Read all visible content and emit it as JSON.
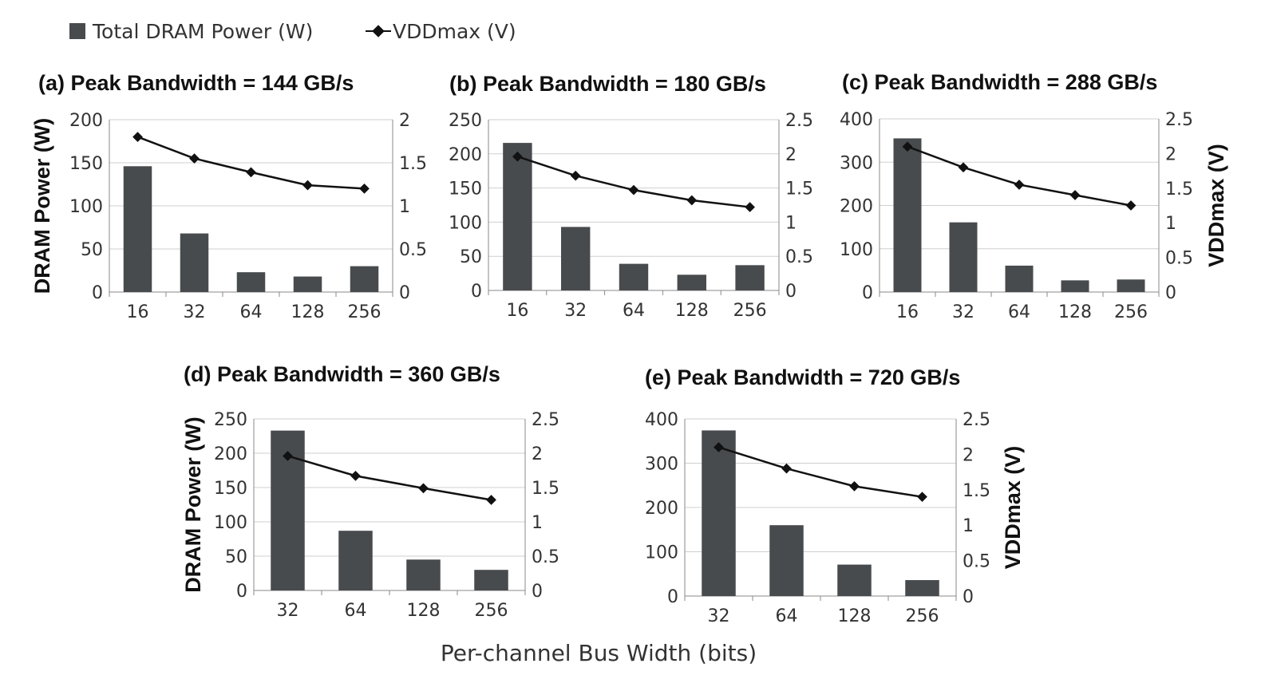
{
  "legend": {
    "bar_label": "Total DRAM Power (W)",
    "line_label": "VDDmax (V)"
  },
  "x_axis_label": "Per-channel Bus Width (bits)",
  "colors": {
    "bar": "#474b4e",
    "line": "#111111"
  },
  "chart_data": [
    {
      "type": "bar",
      "title": "(a) Peak Bandwidth = 144 GB/s",
      "categories": [
        "16",
        "32",
        "64",
        "128",
        "256"
      ],
      "series": [
        {
          "name": "Total DRAM Power (W)",
          "axis": "left",
          "values": [
            146,
            68,
            23,
            18,
            30
          ]
        },
        {
          "name": "VDDmax (V)",
          "axis": "right",
          "type": "line",
          "values": [
            1.8,
            1.55,
            1.39,
            1.24,
            1.2
          ]
        }
      ],
      "ylabel": "DRAM Power (W)",
      "y2label": "",
      "ylim": [
        0,
        200
      ],
      "yticks": [
        0,
        50,
        100,
        150,
        200
      ],
      "ytick_labels": [
        "0",
        "50",
        "100",
        "150",
        "200"
      ],
      "y2lim": [
        0,
        2
      ],
      "y2ticks": [
        0,
        0.5,
        1,
        1.5,
        2
      ],
      "y2tick_labels": [
        "0",
        "0.5",
        "1",
        "1.5",
        "2"
      ],
      "grid": true
    },
    {
      "type": "bar",
      "title": "(b) Peak Bandwidth = 180 GB/s",
      "categories": [
        "16",
        "32",
        "64",
        "128",
        "256"
      ],
      "series": [
        {
          "name": "Total DRAM Power (W)",
          "axis": "left",
          "values": [
            216,
            93,
            39,
            23,
            37
          ]
        },
        {
          "name": "VDDmax (V)",
          "axis": "right",
          "type": "line",
          "values": [
            1.96,
            1.68,
            1.47,
            1.32,
            1.22
          ]
        }
      ],
      "ylabel": "",
      "y2label": "",
      "ylim": [
        0,
        250
      ],
      "yticks": [
        0,
        50,
        100,
        150,
        200,
        250
      ],
      "ytick_labels": [
        "0",
        "50",
        "100",
        "150",
        "200",
        "250"
      ],
      "y2lim": [
        0,
        2.5
      ],
      "y2ticks": [
        0,
        0.5,
        1,
        1.5,
        2,
        2.5
      ],
      "y2tick_labels": [
        "0",
        "0.5",
        "1",
        "1.5",
        "2",
        "2.5"
      ],
      "grid": true
    },
    {
      "type": "bar",
      "title": "(c) Peak Bandwidth = 288 GB/s",
      "categories": [
        "16",
        "32",
        "64",
        "128",
        "256"
      ],
      "series": [
        {
          "name": "Total DRAM Power (W)",
          "axis": "left",
          "values": [
            355,
            161,
            61,
            27,
            29
          ]
        },
        {
          "name": "VDDmax (V)",
          "axis": "right",
          "type": "line",
          "values": [
            2.1,
            1.8,
            1.55,
            1.4,
            1.25
          ]
        }
      ],
      "ylabel": "",
      "y2label": "VDDmax (V)",
      "ylim": [
        0,
        400
      ],
      "yticks": [
        0,
        100,
        200,
        300,
        400
      ],
      "ytick_labels": [
        "0",
        "100",
        "200",
        "300",
        "400"
      ],
      "y2lim": [
        0,
        2.5
      ],
      "y2ticks": [
        0,
        0.5,
        1,
        1.5,
        2,
        2.5
      ],
      "y2tick_labels": [
        "0",
        "0.5",
        "1",
        "1.5",
        "2",
        "2.5"
      ],
      "grid": true
    },
    {
      "type": "bar",
      "title": "(d) Peak Bandwidth = 360 GB/s",
      "categories": [
        "32",
        "64",
        "128",
        "256"
      ],
      "series": [
        {
          "name": "Total DRAM Power (W)",
          "axis": "left",
          "values": [
            233,
            87,
            45,
            30
          ]
        },
        {
          "name": "VDDmax (V)",
          "axis": "right",
          "type": "line",
          "values": [
            1.96,
            1.67,
            1.49,
            1.32
          ]
        }
      ],
      "ylabel": "DRAM Power (W)",
      "y2label": "",
      "ylim": [
        0,
        250
      ],
      "yticks": [
        0,
        50,
        100,
        150,
        200,
        250
      ],
      "ytick_labels": [
        "0",
        "50",
        "100",
        "150",
        "200",
        "250"
      ],
      "y2lim": [
        0,
        2.5
      ],
      "y2ticks": [
        0,
        0.5,
        1,
        1.5,
        2,
        2.5
      ],
      "y2tick_labels": [
        "0",
        "0.5",
        "1",
        "1.5",
        "2",
        "2.5"
      ],
      "grid": true
    },
    {
      "type": "bar",
      "title": "(e) Peak Bandwidth = 720 GB/s",
      "categories": [
        "32",
        "64",
        "128",
        "256"
      ],
      "series": [
        {
          "name": "Total DRAM Power (W)",
          "axis": "left",
          "values": [
            374,
            160,
            71,
            36
          ]
        },
        {
          "name": "VDDmax (V)",
          "axis": "right",
          "type": "line",
          "values": [
            2.1,
            1.8,
            1.55,
            1.4
          ]
        }
      ],
      "ylabel": "",
      "y2label": "VDDmax (V)",
      "ylim": [
        0,
        400
      ],
      "yticks": [
        0,
        100,
        200,
        300,
        400
      ],
      "ytick_labels": [
        "0",
        "100",
        "200",
        "300",
        "400"
      ],
      "y2lim": [
        0,
        2.5
      ],
      "y2ticks": [
        0,
        0.5,
        1,
        1.5,
        2,
        2.5
      ],
      "y2tick_labels": [
        "0",
        "0.5",
        "1",
        "1.5",
        "2",
        "2.5"
      ],
      "grid": true
    }
  ]
}
